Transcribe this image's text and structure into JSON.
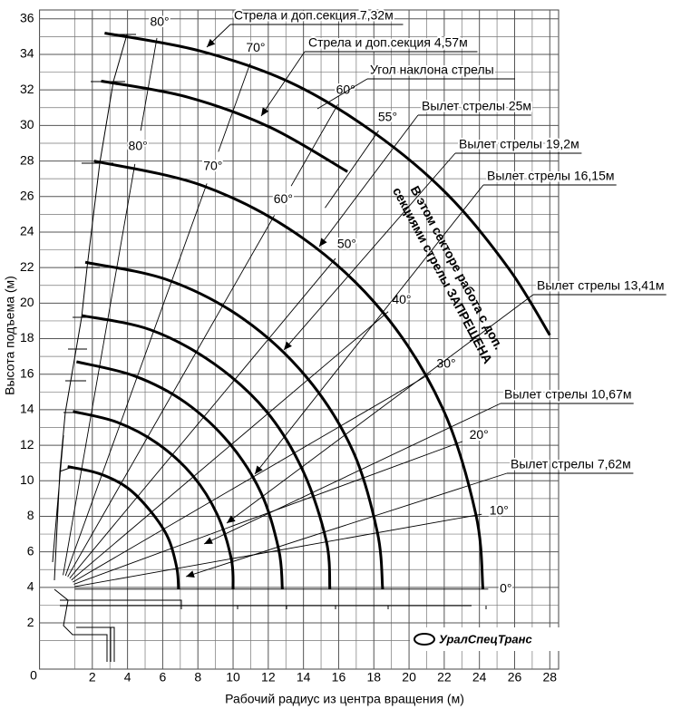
{
  "chart_data": {
    "type": "line",
    "x_label": "Рабочий радиус из центра вращения (м)",
    "y_label": "Высота подъема (м)",
    "origin_label": "0",
    "xlim": [
      -1,
      28.5
    ],
    "ylim": [
      -0.6,
      36.5
    ],
    "xticks": [
      2,
      4,
      6,
      8,
      10,
      12,
      14,
      16,
      18,
      20,
      22,
      24,
      26,
      28
    ],
    "yticks": [
      2,
      4,
      6,
      8,
      10,
      12,
      14,
      16,
      18,
      20,
      22,
      24,
      26,
      28,
      30,
      32,
      34,
      36
    ],
    "grid": true,
    "color": "#000000",
    "series": [
      {
        "name": "Вылет стрелы 7,62м",
        "x": [
          0.6,
          2.4,
          4.0,
          5.3,
          6.3,
          6.8,
          6.9
        ],
        "values": [
          10.8,
          10.4,
          9.6,
          8.3,
          6.8,
          5.1,
          3.9
        ]
      },
      {
        "name": "Вылет стрелы 10,67м",
        "x": [
          0.9,
          3.4,
          5.7,
          7.7,
          9.1,
          9.9,
          10.0
        ],
        "values": [
          13.9,
          13.3,
          12.1,
          10.3,
          8.1,
          5.6,
          3.9
        ]
      },
      {
        "name": "Вылет стрелы 13,41м",
        "x": [
          1.1,
          4.4,
          7.3,
          9.8,
          11.6,
          12.6,
          12.8
        ],
        "values": [
          16.7,
          15.9,
          14.4,
          12.1,
          9.3,
          6.1,
          3.9
        ]
      },
      {
        "name": "Вылет стрелы 16,15м",
        "x": [
          1.4,
          5.3,
          8.9,
          11.9,
          14.0,
          15.3,
          15.5
        ],
        "values": [
          19.3,
          18.5,
          16.6,
          13.9,
          10.5,
          6.6,
          3.9
        ]
      },
      {
        "name": "Вылет стрелы 19,2м",
        "x": [
          1.6,
          6.3,
          10.6,
          14.2,
          16.8,
          18.2,
          18.5
        ],
        "values": [
          22.3,
          21.3,
          19.1,
          15.8,
          11.7,
          7.1,
          3.9
        ]
      },
      {
        "name": "Вылет стрелы 25м",
        "x": [
          2.1,
          8.3,
          13.9,
          18.5,
          21.9,
          23.8,
          24.2
        ],
        "values": [
          28.0,
          26.6,
          23.7,
          19.5,
          14.1,
          8.1,
          3.9
        ]
      },
      {
        "name": "Стрела и доп.секция 4,57м",
        "x": [
          2.5,
          7.4,
          12.1,
          16.5
        ],
        "values": [
          32.5,
          31.6,
          29.9,
          27.4
        ]
      },
      {
        "name": "Стрела и доп.секция 7,32м",
        "x": [
          2.7,
          8.1,
          13.3,
          18.0,
          22.2,
          25.7,
          28.0
        ],
        "values": [
          35.2,
          34.2,
          32.4,
          29.6,
          26.1,
          21.9,
          18.2
        ]
      }
    ],
    "angle_title": "Угол наклона стрелы",
    "angle_labels_outer": [
      {
        "value": 80,
        "label": "80°"
      },
      {
        "value": 70,
        "label": "70°"
      },
      {
        "value": 60,
        "label": "60°"
      },
      {
        "value": 55,
        "label": "55°"
      }
    ],
    "angle_labels_inner": [
      {
        "value": 80,
        "label": "80°"
      },
      {
        "value": 70,
        "label": "70°"
      },
      {
        "value": 60,
        "label": "60°"
      },
      {
        "value": 50,
        "label": "50°"
      },
      {
        "value": 40,
        "label": "40°"
      },
      {
        "value": 30,
        "label": "30°"
      },
      {
        "value": 20,
        "label": "20°"
      },
      {
        "value": 10,
        "label": "10°"
      },
      {
        "value": 0,
        "label": "0°"
      }
    ],
    "warning": [
      "В этом секторе работа с доп.",
      "секциями стрелы ЗАПРЕЩЕНА"
    ],
    "logo": "УралСпецТранс"
  }
}
